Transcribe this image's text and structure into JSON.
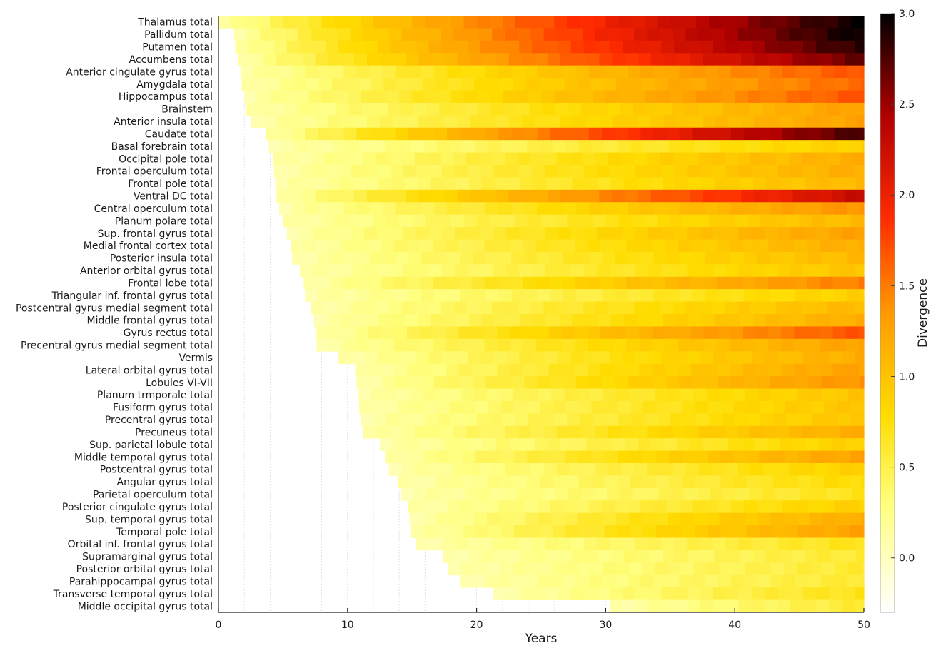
{
  "chart_data": {
    "type": "heatmap",
    "title": "",
    "xlabel": "Years",
    "ylabel": "",
    "xlim": [
      0,
      50
    ],
    "x_ticks": [
      0,
      10,
      20,
      30,
      40,
      50
    ],
    "grid": true,
    "colorbar": {
      "label": "Divergence",
      "range": [
        -0.3,
        3.0
      ],
      "ticks": [
        0.0,
        0.5,
        1.0,
        1.5,
        2.0,
        2.5,
        3.0
      ],
      "tick_labels": [
        "0.0",
        "0.5",
        "1.0",
        "1.5",
        "2.0",
        "2.5",
        "3.0"
      ],
      "colormap": "hot (reversed)",
      "colors": [
        "#ffffff",
        "#ffff60",
        "#ffd000",
        "#ff9000",
        "#ff2000",
        "#c00000",
        "#000000"
      ]
    },
    "rows": [
      {
        "name": "Thalamus total",
        "start_year": 0.0,
        "divergence_at_50": 3.0
      },
      {
        "name": "Pallidum total",
        "start_year": 1.2,
        "divergence_at_50": 3.0
      },
      {
        "name": "Putamen total",
        "start_year": 1.3,
        "divergence_at_50": 2.9
      },
      {
        "name": "Accumbens total",
        "start_year": 1.5,
        "divergence_at_50": 2.7
      },
      {
        "name": "Anterior cingulate gyrus total",
        "start_year": 1.7,
        "divergence_at_50": 1.7
      },
      {
        "name": "Amygdala total",
        "start_year": 1.8,
        "divergence_at_50": 1.6
      },
      {
        "name": "Hippocampus total",
        "start_year": 2.0,
        "divergence_at_50": 1.7
      },
      {
        "name": "Brainstem",
        "start_year": 2.1,
        "divergence_at_50": 1.3
      },
      {
        "name": "Anterior insula total",
        "start_year": 2.5,
        "divergence_at_50": 1.3
      },
      {
        "name": "Caudate total",
        "start_year": 3.7,
        "divergence_at_50": 2.8
      },
      {
        "name": "Basal forebrain total",
        "start_year": 3.9,
        "divergence_at_50": 0.9
      },
      {
        "name": "Occipital pole total",
        "start_year": 4.2,
        "divergence_at_50": 1.2
      },
      {
        "name": "Frontal operculum total",
        "start_year": 4.3,
        "divergence_at_50": 1.2
      },
      {
        "name": "Frontal pole total",
        "start_year": 4.4,
        "divergence_at_50": 1.1
      },
      {
        "name": "Ventral DC total",
        "start_year": 4.5,
        "divergence_at_50": 2.3
      },
      {
        "name": "Central operculum total",
        "start_year": 4.7,
        "divergence_at_50": 1.4
      },
      {
        "name": "Planum polare total",
        "start_year": 5.0,
        "divergence_at_50": 1.1
      },
      {
        "name": "Sup. frontal gyrus total",
        "start_year": 5.3,
        "divergence_at_50": 1.3
      },
      {
        "name": "Medial frontal cortex total",
        "start_year": 5.6,
        "divergence_at_50": 1.2
      },
      {
        "name": "Posterior insula total",
        "start_year": 5.7,
        "divergence_at_50": 1.1
      },
      {
        "name": "Anterior orbital gyrus total",
        "start_year": 6.3,
        "divergence_at_50": 1.0
      },
      {
        "name": "Frontal lobe total",
        "start_year": 6.6,
        "divergence_at_50": 1.5
      },
      {
        "name": "Triangular inf. frontal gyrus total",
        "start_year": 6.7,
        "divergence_at_50": 0.9
      },
      {
        "name": "Postcentral gyrus medial segment total",
        "start_year": 7.2,
        "divergence_at_50": 1.1
      },
      {
        "name": "Middle frontal gyrus total",
        "start_year": 7.4,
        "divergence_at_50": 1.2
      },
      {
        "name": "Gyrus rectus total",
        "start_year": 7.6,
        "divergence_at_50": 1.7
      },
      {
        "name": "Precentral gyrus medial segment total",
        "start_year": 7.6,
        "divergence_at_50": 1.3
      },
      {
        "name": "Vermis",
        "start_year": 9.3,
        "divergence_at_50": 1.2
      },
      {
        "name": "Lateral orbital gyrus total",
        "start_year": 10.6,
        "divergence_at_50": 1.3
      },
      {
        "name": "Lobules VI-VII",
        "start_year": 10.7,
        "divergence_at_50": 1.4
      },
      {
        "name": "Planum trmporale total",
        "start_year": 10.8,
        "divergence_at_50": 1.0
      },
      {
        "name": "Fusiform gyrus total",
        "start_year": 10.9,
        "divergence_at_50": 1.0
      },
      {
        "name": "Precentral gyrus total",
        "start_year": 11.0,
        "divergence_at_50": 1.0
      },
      {
        "name": "Precuneus total",
        "start_year": 11.2,
        "divergence_at_50": 1.2
      },
      {
        "name": "Sup. parietal lobule total",
        "start_year": 12.5,
        "divergence_at_50": 0.9
      },
      {
        "name": "Middle temporal gyrus total",
        "start_year": 12.9,
        "divergence_at_50": 1.3
      },
      {
        "name": "Postcentral gyrus total",
        "start_year": 13.2,
        "divergence_at_50": 0.9
      },
      {
        "name": "Angular gyrus total",
        "start_year": 13.9,
        "divergence_at_50": 0.8
      },
      {
        "name": "Parietal operculum total",
        "start_year": 14.1,
        "divergence_at_50": 0.7
      },
      {
        "name": "Posterior cingulate gyrus total",
        "start_year": 14.7,
        "divergence_at_50": 0.9
      },
      {
        "name": "Sup. temporal gyrus total",
        "start_year": 14.8,
        "divergence_at_50": 1.2
      },
      {
        "name": "Temporal pole total",
        "start_year": 14.9,
        "divergence_at_50": 1.3
      },
      {
        "name": "Orbital inf. frontal gyrus total",
        "start_year": 15.3,
        "divergence_at_50": 0.7
      },
      {
        "name": "Supramarginal gyrus total",
        "start_year": 17.4,
        "divergence_at_50": 0.6
      },
      {
        "name": "Posterior orbital gyrus total",
        "start_year": 17.8,
        "divergence_at_50": 0.6
      },
      {
        "name": "Parahippocampal gyrus total",
        "start_year": 18.7,
        "divergence_at_50": 0.6
      },
      {
        "name": "Transverse temporal gyrus total",
        "start_year": 21.3,
        "divergence_at_50": 0.7
      },
      {
        "name": "Middle occipital gyrus total",
        "start_year": 30.3,
        "divergence_at_50": 0.6
      }
    ]
  }
}
